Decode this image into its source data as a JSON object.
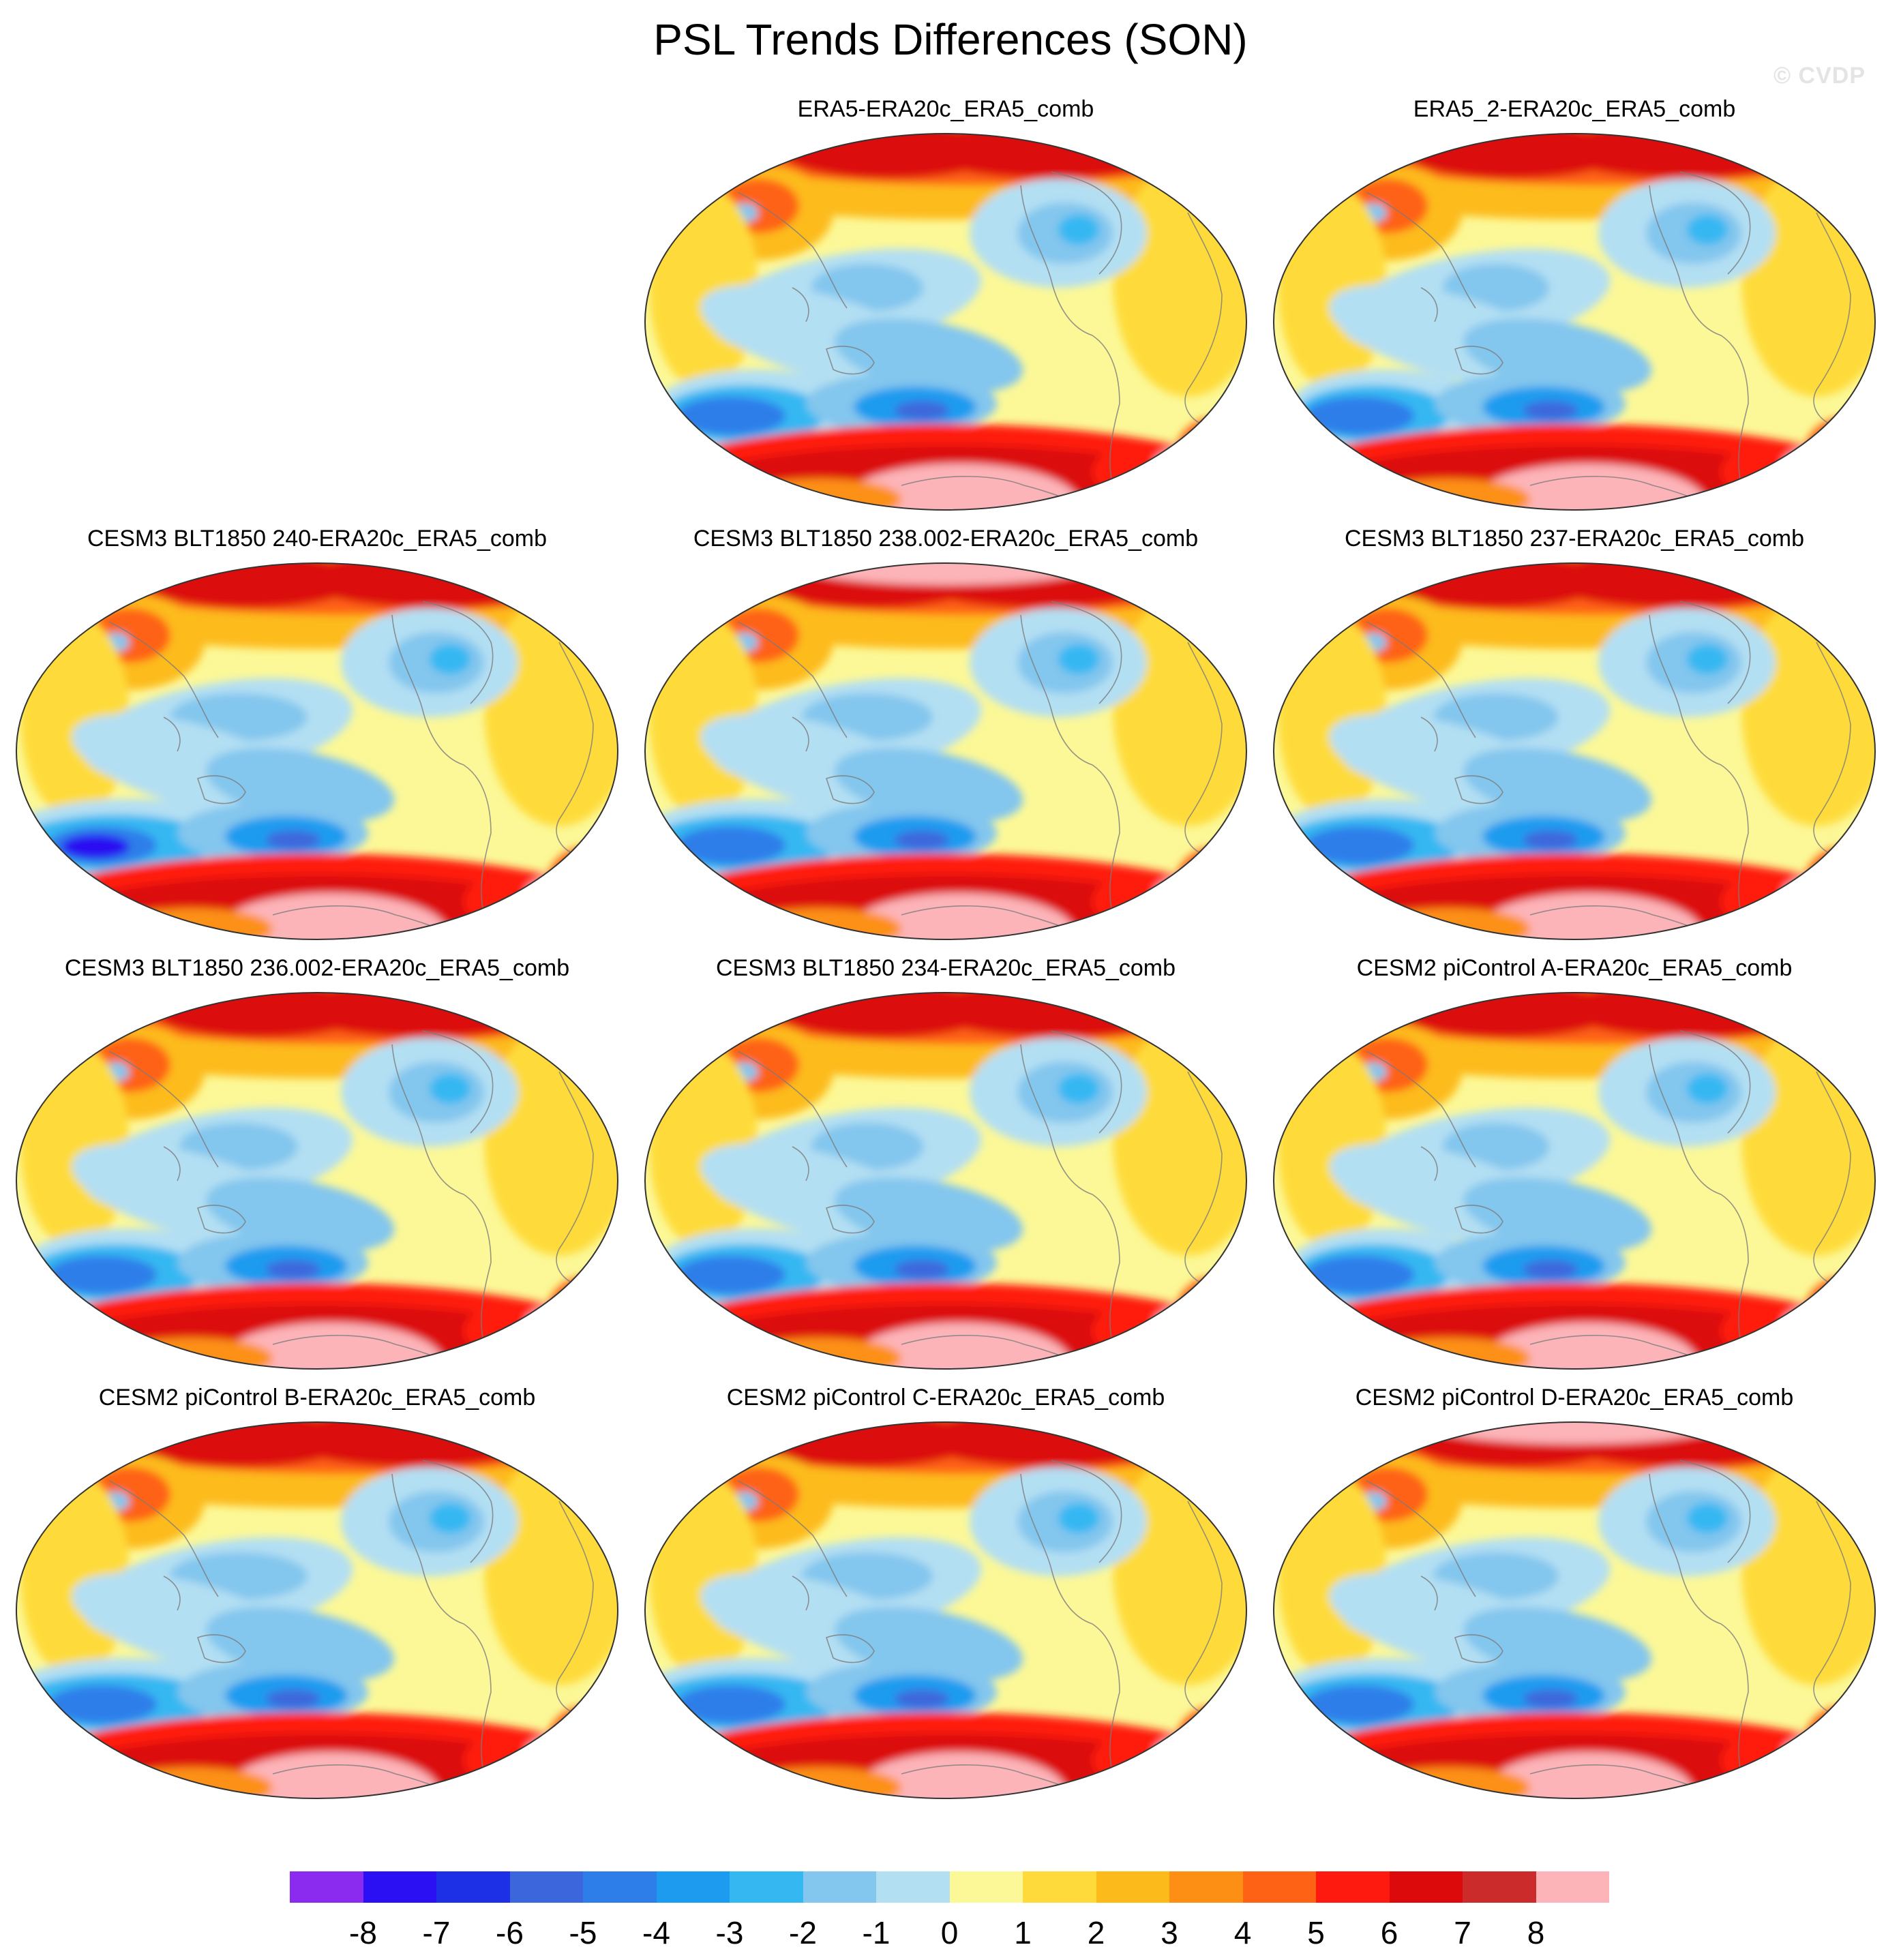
{
  "figure": {
    "title": "PSL Trends Differences (SON)",
    "credit": "© CVDP"
  },
  "panels": [
    {
      "title": "ERA5-ERA20c_ERA5_comb",
      "variant": 0
    },
    {
      "title": "ERA5_2-ERA20c_ERA5_comb",
      "variant": 1
    },
    {
      "title": "CESM3 BLT1850 240-ERA20c_ERA5_comb",
      "variant": 2
    },
    {
      "title": "CESM3 BLT1850 238.002-ERA20c_ERA5_comb",
      "variant": 3
    },
    {
      "title": "CESM3 BLT1850 237-ERA20c_ERA5_comb",
      "variant": 4
    },
    {
      "title": "CESM3 BLT1850 236.002-ERA20c_ERA5_comb",
      "variant": 5
    },
    {
      "title": "CESM3 BLT1850 234-ERA20c_ERA5_comb",
      "variant": 6
    },
    {
      "title": "CESM2 piControl A-ERA20c_ERA5_comb",
      "variant": 7
    },
    {
      "title": "CESM2 piControl B-ERA20c_ERA5_comb",
      "variant": 8
    },
    {
      "title": "CESM2 piControl C-ERA20c_ERA5_comb",
      "variant": 9
    },
    {
      "title": "CESM2 piControl D-ERA20c_ERA5_comb",
      "variant": 10
    }
  ],
  "colorbar": {
    "labels": [
      "-8",
      "-7",
      "-6",
      "-5",
      "-4",
      "-3",
      "-2",
      "-1",
      "0",
      "1",
      "2",
      "3",
      "4",
      "5",
      "6",
      "7",
      "8"
    ],
    "colors": [
      "#8b2bef",
      "#2a10f2",
      "#1e30e6",
      "#3c67dc",
      "#2e7ee9",
      "#1c9bef",
      "#35b7f2",
      "#83c6ee",
      "#b3dff3",
      "#fcf897",
      "#fedb3a",
      "#fdbb1b",
      "#fd9014",
      "#fe6214",
      "#ff1a10",
      "#dc0a0a",
      "#cc2b2b",
      "#fdb4b8"
    ]
  }
}
